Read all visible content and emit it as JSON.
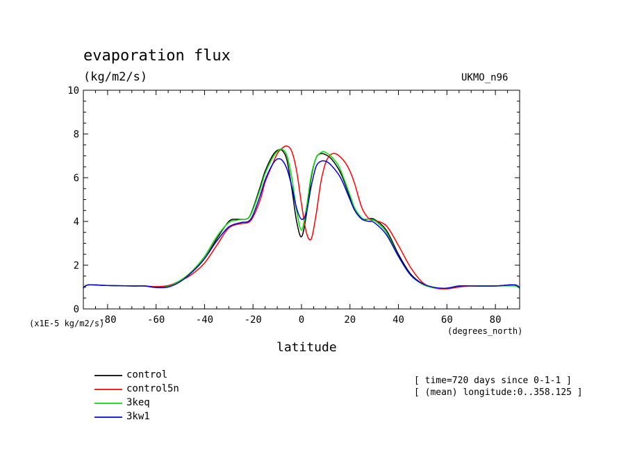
{
  "title": "evaporation flux",
  "units": "(kg/m2/s)",
  "model": "UKMO_n96",
  "scale_note": "(x1E-5 kg/m2/s)",
  "x_units": "(degrees_north)",
  "info": {
    "time": "[ time=720 days since 0-1-1 ]",
    "mean": "[ (mean) longitude:0..358.125 ]"
  },
  "chart_data": {
    "type": "line",
    "title": "evaporation flux",
    "xlabel": "latitude",
    "ylabel": "(kg/m2/s)",
    "xlim": [
      -90,
      90
    ],
    "ylim": [
      0,
      10
    ],
    "x_ticks": [
      -80,
      -60,
      -40,
      -20,
      0,
      20,
      40,
      60,
      80
    ],
    "y_ticks": [
      0,
      2,
      4,
      6,
      8,
      10
    ],
    "series": [
      {
        "name": "control",
        "color": "#000000",
        "x": [
          -90,
          -88,
          -80,
          -70,
          -65,
          -60,
          -55,
          -50,
          -45,
          -40,
          -35,
          -30,
          -27,
          -25,
          -22,
          -20,
          -17,
          -15,
          -12,
          -10,
          -8,
          -6,
          -4,
          -2,
          0,
          2,
          4,
          6,
          8,
          10,
          12,
          15,
          17,
          20,
          22,
          25,
          27,
          30,
          35,
          40,
          45,
          50,
          55,
          60,
          65,
          70,
          80,
          88,
          90
        ],
        "y": [
          0.95,
          1.1,
          1.07,
          1.05,
          1.05,
          1.0,
          1.05,
          1.3,
          1.7,
          2.3,
          3.2,
          4.0,
          4.1,
          4.1,
          4.15,
          4.6,
          5.6,
          6.3,
          7.0,
          7.25,
          7.25,
          6.8,
          5.5,
          4.0,
          3.3,
          4.3,
          6.0,
          6.9,
          7.1,
          7.05,
          6.9,
          6.45,
          6.0,
          5.1,
          4.5,
          4.1,
          4.1,
          4.1,
          3.6,
          2.5,
          1.6,
          1.15,
          0.97,
          0.95,
          1.05,
          1.05,
          1.05,
          1.1,
          0.95
        ]
      },
      {
        "name": "control5n",
        "color": "#ff0000",
        "x": [
          -90,
          -88,
          -80,
          -70,
          -65,
          -60,
          -55,
          -50,
          -45,
          -40,
          -35,
          -30,
          -25,
          -22,
          -20,
          -17,
          -15,
          -12,
          -10,
          -8,
          -6,
          -4,
          -2,
          0,
          2,
          4,
          6,
          8,
          10,
          12,
          14,
          16,
          18,
          20,
          22,
          25,
          28,
          30,
          35,
          40,
          45,
          50,
          55,
          60,
          65,
          70,
          80,
          88,
          90
        ],
        "y": [
          0.95,
          1.1,
          1.07,
          1.05,
          1.05,
          1.02,
          1.07,
          1.28,
          1.6,
          2.1,
          2.9,
          3.7,
          3.9,
          3.95,
          4.2,
          5.0,
          5.8,
          6.6,
          7.1,
          7.35,
          7.45,
          7.2,
          6.3,
          4.8,
          3.5,
          3.2,
          4.3,
          5.8,
          6.7,
          7.05,
          7.1,
          6.95,
          6.7,
          6.3,
          5.7,
          4.6,
          4.1,
          4.05,
          3.8,
          2.9,
          1.9,
          1.2,
          0.95,
          0.92,
          1.0,
          1.05,
          1.05,
          1.1,
          0.95
        ]
      },
      {
        "name": "3keq",
        "color": "#00dd00",
        "x": [
          -90,
          -88,
          -80,
          -70,
          -65,
          -60,
          -55,
          -50,
          -45,
          -40,
          -35,
          -30,
          -27,
          -25,
          -22,
          -20,
          -17,
          -15,
          -12,
          -10,
          -8,
          -6,
          -4,
          -2,
          0,
          2,
          4,
          6,
          8,
          9,
          10,
          12,
          15,
          17,
          20,
          22,
          25,
          27,
          30,
          35,
          40,
          45,
          50,
          55,
          60,
          65,
          70,
          80,
          88,
          90
        ],
        "y": [
          0.95,
          1.1,
          1.07,
          1.05,
          1.05,
          0.98,
          1.03,
          1.3,
          1.75,
          2.4,
          3.3,
          3.95,
          4.05,
          4.1,
          4.15,
          4.55,
          5.5,
          6.2,
          6.9,
          7.2,
          7.3,
          7.0,
          6.0,
          4.5,
          3.6,
          4.6,
          6.1,
          6.9,
          7.15,
          7.2,
          7.15,
          7.0,
          6.6,
          6.1,
          5.2,
          4.6,
          4.15,
          4.1,
          4.05,
          3.5,
          2.4,
          1.55,
          1.12,
          0.96,
          0.95,
          1.05,
          1.05,
          1.05,
          1.05,
          0.95
        ]
      },
      {
        "name": "3kw1",
        "color": "#0000dd",
        "x": [
          -90,
          -88,
          -80,
          -70,
          -65,
          -60,
          -55,
          -50,
          -45,
          -40,
          -35,
          -30,
          -25,
          -22,
          -20,
          -17,
          -15,
          -12,
          -10,
          -8,
          -6,
          -4,
          -2,
          0,
          2,
          4,
          6,
          8,
          10,
          12,
          15,
          17,
          20,
          22,
          25,
          28,
          30,
          35,
          40,
          45,
          50,
          55,
          60,
          65,
          70,
          80,
          88,
          90
        ],
        "y": [
          0.95,
          1.1,
          1.07,
          1.05,
          1.05,
          0.98,
          1.0,
          1.25,
          1.7,
          2.3,
          3.1,
          3.75,
          3.95,
          4.0,
          4.3,
          5.2,
          5.9,
          6.6,
          6.85,
          6.8,
          6.4,
          5.6,
          4.6,
          4.1,
          4.4,
          5.6,
          6.5,
          6.75,
          6.75,
          6.6,
          6.2,
          5.8,
          5.0,
          4.5,
          4.1,
          4.0,
          3.95,
          3.4,
          2.4,
          1.55,
          1.15,
          0.98,
          0.95,
          1.05,
          1.05,
          1.05,
          1.1,
          0.95
        ]
      }
    ],
    "legend_position": "bottom-left"
  }
}
